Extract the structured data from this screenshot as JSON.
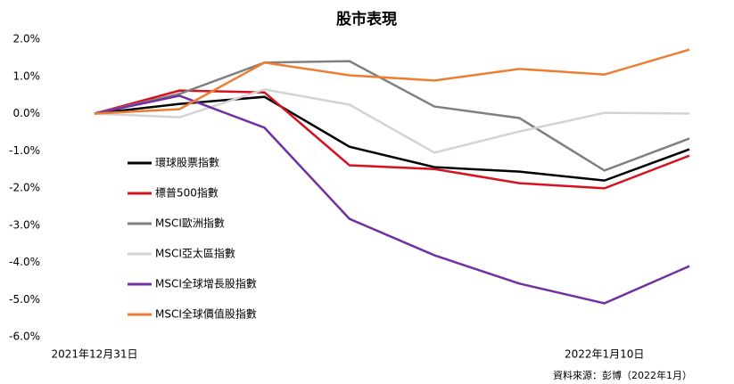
{
  "chart_data": {
    "type": "line",
    "title": "股市表現",
    "categories": [
      "2021年12月31日",
      null,
      null,
      null,
      null,
      null,
      "2022年1月10日",
      null
    ],
    "series": [
      {
        "name": "環球股票指數",
        "color": "#000000",
        "values": [
          0,
          0.26,
          0.45,
          -0.89,
          -1.44,
          -1.56,
          -1.8,
          -0.96
        ]
      },
      {
        "name": "標普500指數",
        "color": "#d7111f",
        "values": [
          0,
          0.62,
          0.57,
          -1.39,
          -1.49,
          -1.87,
          -2.01,
          -1.13
        ]
      },
      {
        "name": "MSCI歐洲指數",
        "color": "#808080",
        "values": [
          0,
          0.53,
          1.37,
          1.41,
          0.19,
          -0.12,
          -1.53,
          -0.67
        ]
      },
      {
        "name": "MSCI亞太區指數",
        "color": "#d3d3d3",
        "values": [
          0,
          -0.1,
          0.65,
          0.24,
          -1.05,
          -0.48,
          0.02,
          0
        ]
      },
      {
        "name": "MSCI全球增長股指數",
        "color": "#7030a0",
        "values": [
          0,
          0.48,
          -0.38,
          -2.83,
          -3.81,
          -4.57,
          -5.1,
          -4.1
        ]
      },
      {
        "name": "MSCI全球價值股指數",
        "color": "#ed7d31",
        "values": [
          0,
          0.12,
          1.37,
          1.03,
          0.89,
          1.2,
          1.05,
          1.72
        ]
      }
    ],
    "ylim": [
      -6,
      2
    ],
    "yticks": [
      {
        "value": 2,
        "label": "2.0%"
      },
      {
        "value": 1,
        "label": "1.0%"
      },
      {
        "value": 0,
        "label": "0.0%"
      },
      {
        "value": -1,
        "label": "-1.0%"
      },
      {
        "value": -2,
        "label": "-2.0%"
      },
      {
        "value": -3,
        "label": "-3.0%"
      },
      {
        "value": -4,
        "label": "-4.0%"
      },
      {
        "value": -5,
        "label": "-5.0%"
      },
      {
        "value": -6,
        "label": "-6.0%"
      }
    ],
    "grid": false,
    "legend": "left",
    "source": "資料來源：彭博（2022年1月）"
  }
}
